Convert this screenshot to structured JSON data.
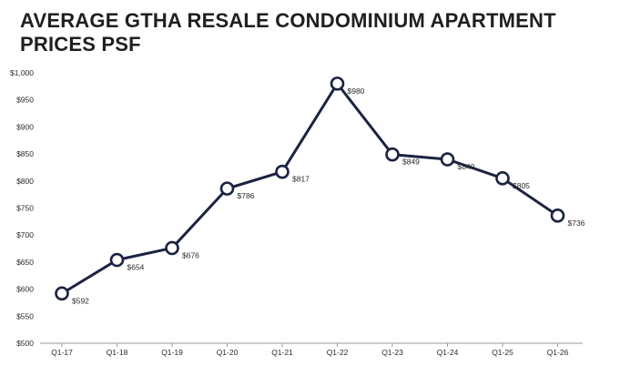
{
  "chart_data": {
    "type": "line",
    "title": "AVERAGE GTHA RESALE CONDOMINIUM APARTMENT PRICES PSF",
    "xlabel": "",
    "ylabel": "",
    "categories": [
      "Q1-17",
      "Q1-18",
      "Q1-19",
      "Q1-20",
      "Q1-21",
      "Q1-22",
      "Q1-23",
      "Q1-24",
      "Q1-25",
      "Q1-26"
    ],
    "series": [
      {
        "values": [
          592,
          654,
          676,
          786,
          817,
          980,
          849,
          840,
          805,
          736
        ],
        "labels": [
          "$592",
          "$654",
          "$676",
          "$786",
          "$817",
          "$980",
          "$849",
          "$840",
          "$805",
          "$736"
        ]
      }
    ],
    "ylim": [
      500,
      1000
    ],
    "yticks": [
      1000,
      950,
      900,
      850,
      800,
      750,
      700,
      650,
      600,
      550,
      500
    ],
    "ytick_labels": [
      "$1,000",
      "$950",
      "$900",
      "$850",
      "$800",
      "$750",
      "$700",
      "$650",
      "$600",
      "$550",
      "$500"
    ],
    "grid": false,
    "line_color": "#1b2340",
    "marker_fill": "#ffffff"
  }
}
